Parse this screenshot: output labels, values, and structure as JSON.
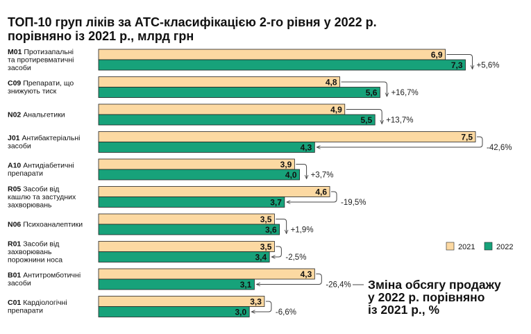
{
  "title_line1": "ТОП-10 груп ліків за АТС-класифікацією 2-го рівня у 2022 р.",
  "title_line2": "порівняно із 2021 р., млрд грн",
  "legend": [
    {
      "label": "2021",
      "color": "#fcd9a2"
    },
    {
      "label": "2022",
      "color": "#17a27a"
    }
  ],
  "annotation": [
    "Зміна обсягу продажу",
    "у 2022 р. порівняно",
    "із 2021 р., %"
  ],
  "chart_data": {
    "type": "bar",
    "orientation": "horizontal",
    "categories": [
      {
        "code": "M01",
        "lines": [
          "Протизапальні",
          "та протиревматичні",
          "засоби"
        ]
      },
      {
        "code": "C09",
        "lines": [
          "Препарати, що",
          "знижують тиск"
        ]
      },
      {
        "code": "N02",
        "lines": [
          "Анальгетики"
        ]
      },
      {
        "code": "J01",
        "lines": [
          "Антибактеріальні",
          "засоби"
        ]
      },
      {
        "code": "A10",
        "lines": [
          "Антидіабетичні",
          "препарати"
        ]
      },
      {
        "code": "R05",
        "lines": [
          "Засоби від",
          "кашлю та застудних",
          "захворювань"
        ]
      },
      {
        "code": "N06",
        "lines": [
          "Психоаналептики"
        ]
      },
      {
        "code": "R01",
        "lines": [
          "Засоби від",
          "захворювань",
          "порожнини носа"
        ]
      },
      {
        "code": "B01",
        "lines": [
          "Антитромботичні",
          "засоби"
        ]
      },
      {
        "code": "C01",
        "lines": [
          "Кардіологічні",
          "препарати"
        ]
      }
    ],
    "series": [
      {
        "name": "2021",
        "values": [
          6.9,
          4.8,
          4.9,
          7.5,
          3.9,
          4.6,
          3.5,
          3.5,
          4.3,
          3.3
        ],
        "labels": [
          "6,9",
          "4,8",
          "4,9",
          "7,5",
          "3,9",
          "4,6",
          "3,5",
          "3,5",
          "4,3",
          "3,3"
        ]
      },
      {
        "name": "2022",
        "values": [
          7.3,
          5.6,
          5.5,
          4.3,
          4.0,
          3.7,
          3.6,
          3.4,
          3.1,
          3.0
        ],
        "labels": [
          "7,3",
          "5,6",
          "5,5",
          "4,3",
          "4,0",
          "3,7",
          "3,6",
          "3,4",
          "3,1",
          "3,0"
        ]
      }
    ],
    "change_pct": [
      "+5,6%",
      "+16,7%",
      "+13,7%",
      "-42,6%",
      "+3,7%",
      "-19,5%",
      "+1,9%",
      "-2,5%",
      "-26,4%",
      "-6,6%"
    ],
    "grid": false,
    "legend_position": "right"
  }
}
